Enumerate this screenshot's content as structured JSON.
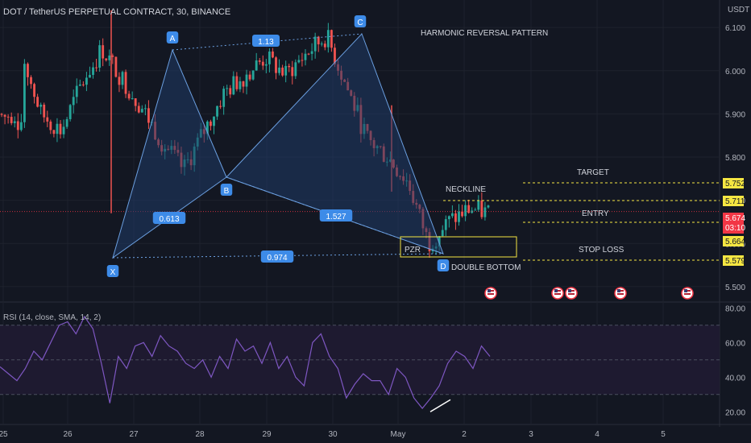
{
  "header": {
    "title": "DOT / TetherUS PERPETUAL CONTRACT, 30, BINANCE",
    "currency": "USDT"
  },
  "colors": {
    "background": "#131722",
    "up": "#26a69a",
    "down": "#ef5350",
    "pattern_fill": "#1f3a66",
    "pattern_line": "#6b9fe0",
    "point_label": "#3d8be8",
    "rsi_line": "#7e57c2",
    "rsi_band": "#1e1a30",
    "highlight": "#f5e642",
    "current_price": "#f23645"
  },
  "annotations": {
    "pattern_title": "HARMONIC REVERSAL PATTERN",
    "target": "TARGET",
    "neckline": "NECKLINE",
    "entry": "ENTRY",
    "stop_loss": "STOP LOSS",
    "double_bottom": "DOUBLE BOTTOM",
    "pzr": "PZR"
  },
  "pattern": {
    "points": [
      {
        "label": "X"
      },
      {
        "label": "A"
      },
      {
        "label": "B"
      },
      {
        "label": "C"
      },
      {
        "label": "D"
      }
    ],
    "ratios": [
      {
        "label": "0.613"
      },
      {
        "label": "1.13"
      },
      {
        "label": "1.527"
      },
      {
        "label": "0.974"
      }
    ]
  },
  "price_tags": {
    "target": "5.752",
    "neckline": "5.711",
    "current": "5.674",
    "countdown": "03:10",
    "entry": "5.664",
    "stop": "5.579"
  },
  "rsi": {
    "title": "RSI (14, close, SMA, 14, 2)"
  },
  "chart_data": [
    {
      "type": "candlestick",
      "title": "DOT / TetherUS PERPETUAL CONTRACT, 30, BINANCE",
      "ylabel": "USDT",
      "ylim": [
        5.47,
        6.16
      ],
      "y_ticks": [
        "5.500",
        "5.600",
        "5.700",
        "5.800",
        "5.900",
        "6.000",
        "6.100"
      ],
      "x_ticks": [
        "25",
        "26",
        "27",
        "28",
        "29",
        "30",
        "May",
        "2",
        "3",
        "4",
        "5"
      ],
      "series": [
        {
          "name": "close",
          "x": [
            "26 12:00",
            "26 18:00",
            "27 00:00",
            "27 06:00",
            "27 12:00",
            "27 18:00",
            "28 00:00",
            "28 06:00",
            "28 12:00",
            "28 18:00",
            "29 00:00",
            "29 06:00",
            "29 12:00",
            "29 18:00",
            "30 00:00",
            "30 06:00",
            "30 12:00",
            "30 18:00",
            "May 00:00",
            "May 06:00",
            "May 12:00",
            "May 18:00",
            "2 00:00",
            "2 06:00",
            "2 12:00"
          ],
          "values": [
            6.14,
            6.05,
            5.9,
            5.86,
            5.97,
            6.05,
            5.98,
            5.91,
            5.83,
            5.77,
            5.86,
            5.95,
            5.99,
            6.03,
            5.99,
            6.04,
            6.08,
            5.96,
            5.84,
            5.8,
            5.74,
            5.6,
            5.65,
            5.68,
            5.67
          ]
        }
      ],
      "levels": [
        {
          "label": "TARGET",
          "value": 5.752
        },
        {
          "label": "NECKLINE",
          "value": 5.711
        },
        {
          "label": "ENTRY",
          "value": 5.664
        },
        {
          "label": "STOP LOSS",
          "value": 5.579
        }
      ],
      "current_price": 5.674
    },
    {
      "type": "line",
      "title": "RSI (14, close, SMA, 14, 2)",
      "ylim": [
        15,
        82
      ],
      "y_ticks": [
        "20.00",
        "40.00",
        "60.00",
        "80.00"
      ],
      "bands": [
        30,
        50,
        70
      ],
      "series": [
        {
          "name": "RSI",
          "values": [
            46,
            42,
            38,
            45,
            55,
            50,
            60,
            70,
            72,
            65,
            75,
            68,
            48,
            25,
            52,
            45,
            58,
            60,
            52,
            64,
            58,
            55,
            48,
            45,
            50,
            40,
            52,
            45,
            62,
            55,
            58,
            48,
            60,
            45,
            52,
            40,
            35,
            60,
            65,
            52,
            45,
            28,
            36,
            42,
            38,
            38,
            30,
            45,
            40,
            28,
            22,
            28,
            35,
            48,
            55,
            52,
            45,
            58,
            52
          ]
        }
      ]
    }
  ]
}
